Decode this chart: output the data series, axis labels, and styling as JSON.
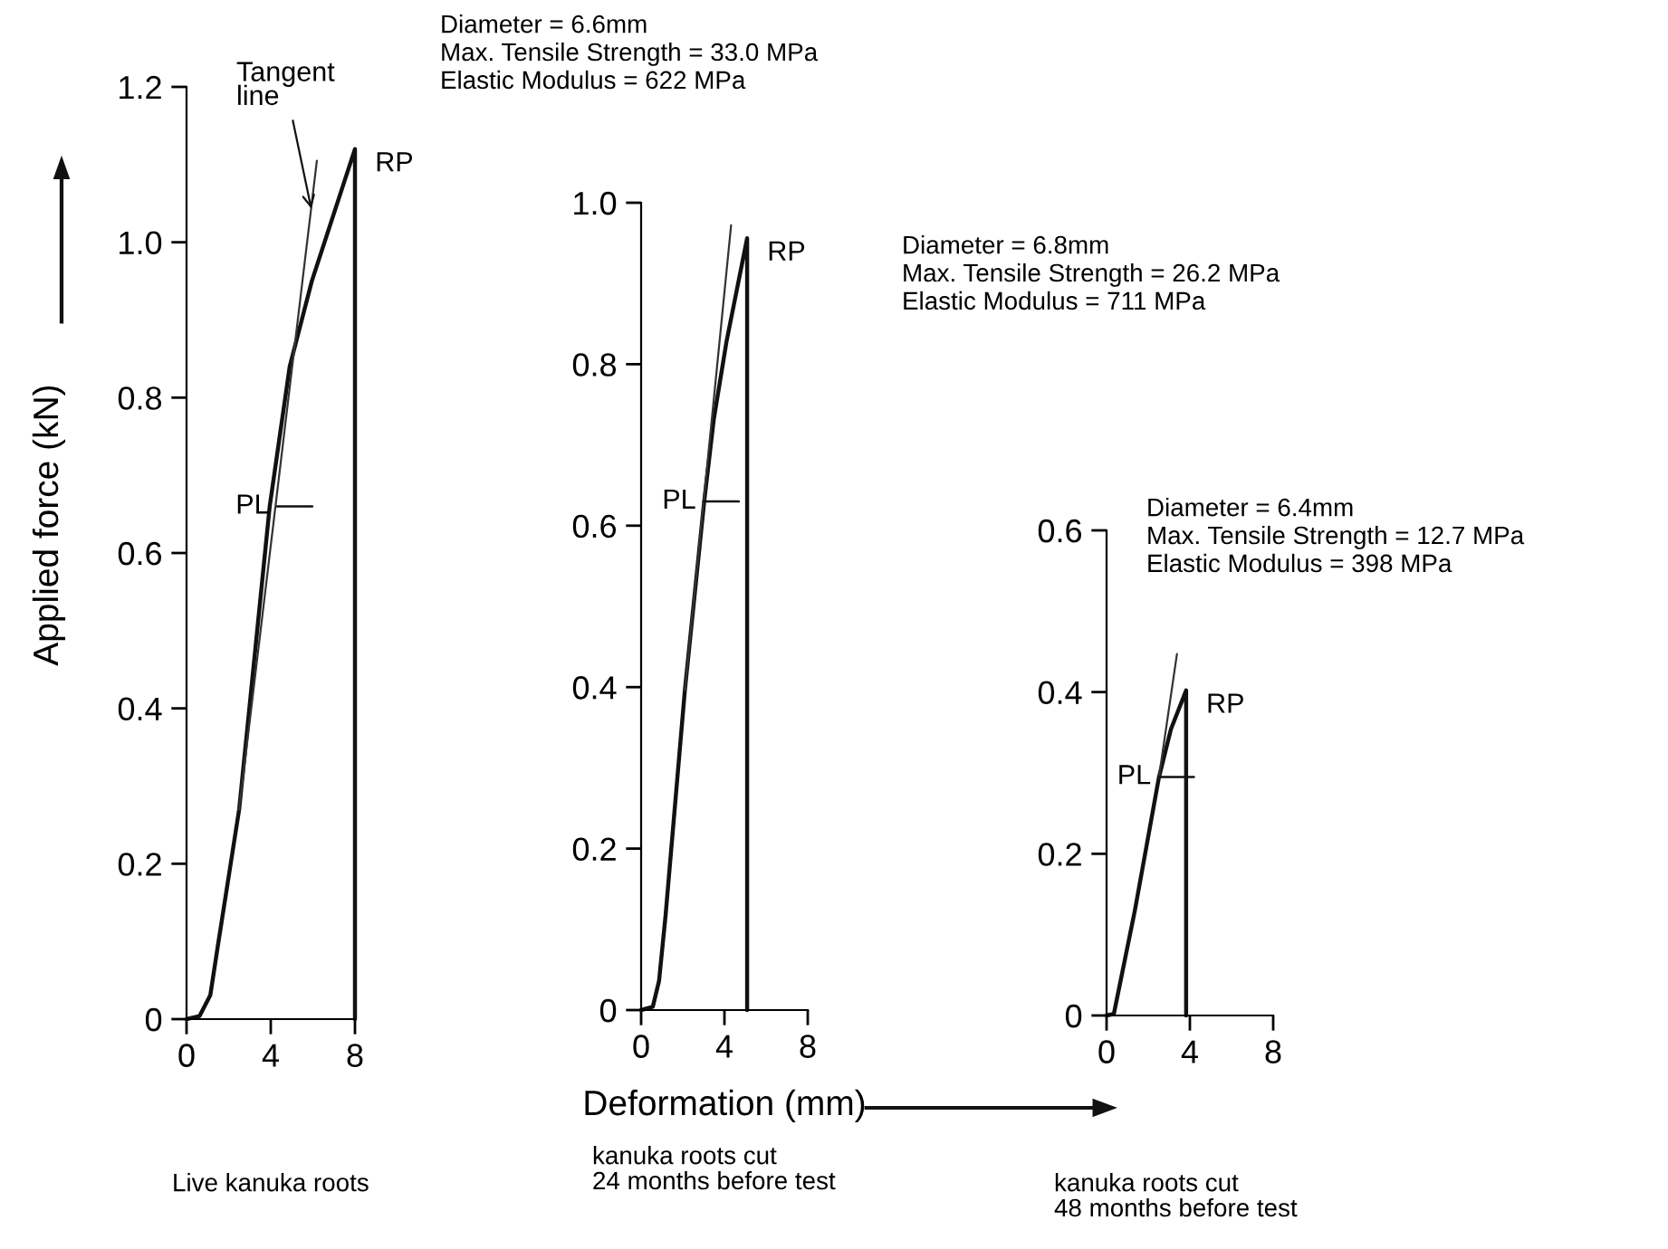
{
  "chart_data": [
    {
      "type": "line",
      "ylabel": "Applied force (kN)",
      "series": [
        {
          "color": "#111111",
          "x": [
            0,
            0.62,
            1.13,
            1.48,
            2.5,
            3.95,
            4.9,
            5.95,
            8.0,
            8.0
          ],
          "values": [
            0,
            0.004,
            0.031,
            0.093,
            0.27,
            0.66,
            0.84,
            0.95,
            1.12,
            0
          ]
        },
        {
          "color": "#333333",
          "x": [
            2.5,
            6.19
          ],
          "values": [
            0.27,
            1.105
          ]
        }
      ],
      "xlim": [
        0,
        8
      ],
      "ylim": [
        0,
        1.2
      ],
      "xticks": [
        0,
        4,
        8
      ],
      "yticks": [
        0,
        0.2,
        0.4,
        0.6,
        0.8,
        {
          "value": 1,
          "label": "1.0"
        },
        1.2
      ],
      "annotations": [
        "Diameter = 6.6mm\nMax. Tensile Strength = 33.0 MPa\nElastic Modulus = 622 MPa",
        "Live kanuka roots",
        {
          "text": "Tangent line",
          "x": 5.95,
          "y": 1.04
        },
        {
          "text": "PL",
          "x": 4.3,
          "y": 0.66
        },
        {
          "text": "RP",
          "x": 8.0,
          "y": 1.12
        }
      ]
    },
    {
      "type": "line",
      "xlabel": "Deformation (mm)",
      "series": [
        {
          "color": "#111111",
          "x": [
            0,
            0.56,
            0.86,
            1.17,
            2.1,
            3.02,
            3.49,
            4.1,
            5.09,
            5.09
          ],
          "values": [
            0,
            0.004,
            0.036,
            0.116,
            0.396,
            0.628,
            0.732,
            0.828,
            0.956,
            0
          ]
        },
        {
          "color": "#333333",
          "x": [
            2.1,
            4.32
          ],
          "values": [
            0.396,
            0.972
          ]
        }
      ],
      "xlim": [
        0,
        8
      ],
      "ylim": [
        0,
        1.0
      ],
      "xticks": [
        0,
        4,
        8
      ],
      "yticks": [
        0,
        0.2,
        0.4,
        0.6,
        0.8,
        {
          "value": 1,
          "label": "1.0"
        }
      ],
      "annotations": [
        "Diameter = 6.8mm\nMax. Tensile Strength = 26.2 MPa\nElastic Modulus = 711 MPa",
        "kanuka roots cut\n24 months before test",
        {
          "text": "PL",
          "x": 3.0,
          "y": 0.63
        },
        {
          "text": "RP",
          "x": 5.09,
          "y": 0.956
        }
      ]
    },
    {
      "type": "line",
      "series": [
        {
          "color": "#111111",
          "x": [
            0,
            0.35,
            1.36,
            2.51,
            3.09,
            3.82,
            3.82
          ],
          "values": [
            0,
            0.002,
            0.13,
            0.294,
            0.354,
            0.402,
            0
          ]
        },
        {
          "color": "#333333",
          "x": [
            2.51,
            3.38
          ],
          "values": [
            0.294,
            0.447
          ]
        }
      ],
      "xlim": [
        0,
        8
      ],
      "ylim": [
        0,
        0.6
      ],
      "xticks": [
        0,
        4,
        8
      ],
      "yticks": [
        0,
        0.2,
        0.4,
        0.6
      ],
      "annotations": [
        "Diameter = 6.4mm\nMax. Tensile Strength = 12.7 MPa\nElastic Modulus = 398 MPa",
        "kanuka roots cut\n48 months before test",
        {
          "text": "PL",
          "x": 2.5,
          "y": 0.295
        },
        {
          "text": "RP",
          "x": 3.82,
          "y": 0.402
        }
      ]
    }
  ]
}
